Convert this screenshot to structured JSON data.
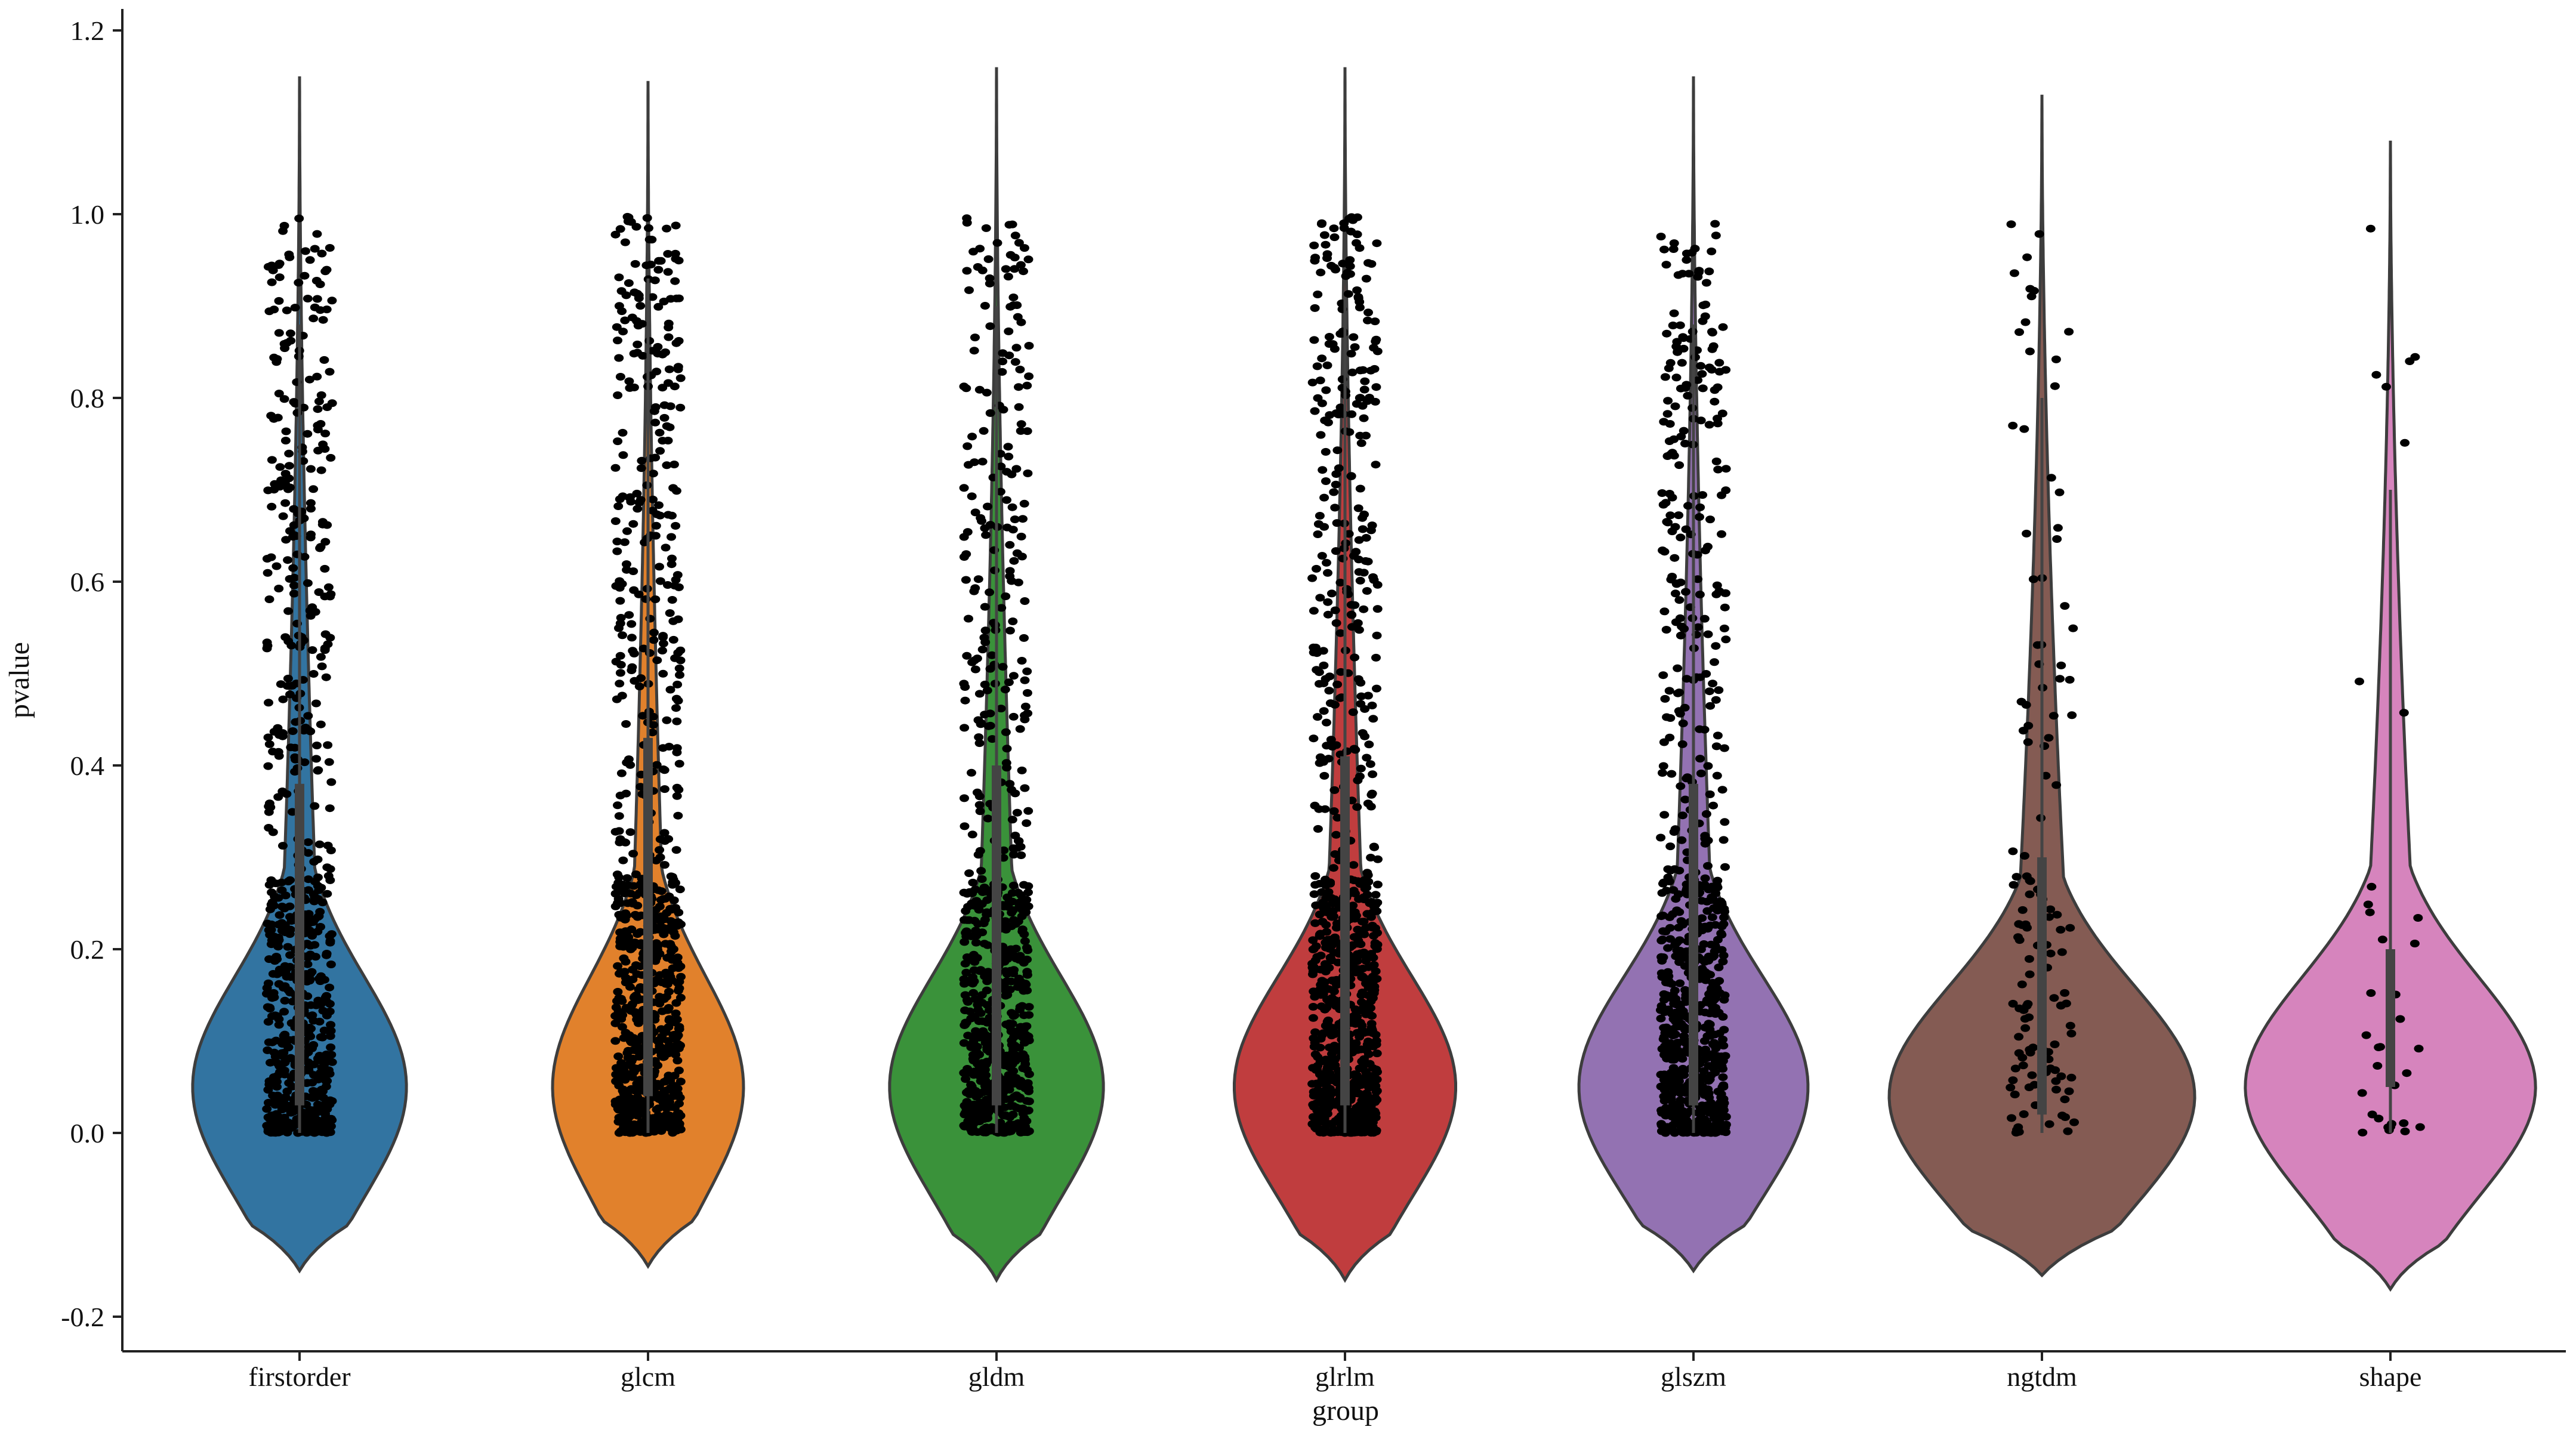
{
  "chart_data": {
    "type": "violin",
    "xlabel": "group",
    "ylabel": "pvalue",
    "ylim": [
      -0.2,
      1.2
    ],
    "yticks": [
      "-0.2",
      "0.0",
      "0.2",
      "0.4",
      "0.6",
      "0.8",
      "1.0",
      "1.2"
    ],
    "categories": [
      "firstorder",
      "glcm",
      "gldm",
      "glrlm",
      "glszm",
      "ngtdm",
      "shape"
    ],
    "series": [
      {
        "category": "firstorder",
        "color": "#3274a1",
        "min": -0.15,
        "max": 1.15,
        "mode": 0.05,
        "max_half_width": 0.28,
        "n_points": 700,
        "q1": 0.03,
        "median": 0.12,
        "q3": 0.38
      },
      {
        "category": "glcm",
        "color": "#e1812c",
        "min": -0.145,
        "max": 1.145,
        "mode": 0.05,
        "max_half_width": 0.25,
        "n_points": 850,
        "q1": 0.04,
        "median": 0.15,
        "q3": 0.43
      },
      {
        "category": "gldm",
        "color": "#3a923a",
        "min": -0.16,
        "max": 1.16,
        "mode": 0.05,
        "max_half_width": 0.28,
        "n_points": 700,
        "q1": 0.03,
        "median": 0.13,
        "q3": 0.4
      },
      {
        "category": "glrlm",
        "color": "#c03d3e",
        "min": -0.16,
        "max": 1.16,
        "mode": 0.05,
        "max_half_width": 0.29,
        "n_points": 900,
        "q1": 0.03,
        "median": 0.13,
        "q3": 0.41
      },
      {
        "category": "glszm",
        "color": "#9372b2",
        "min": -0.15,
        "max": 1.15,
        "mode": 0.05,
        "max_half_width": 0.3,
        "n_points": 750,
        "q1": 0.03,
        "median": 0.12,
        "q3": 0.38
      },
      {
        "category": "ngtdm",
        "color": "#845b53",
        "min": -0.155,
        "max": 1.13,
        "mode": 0.04,
        "max_half_width": 0.4,
        "n_points": 130,
        "q1": 0.02,
        "median": 0.08,
        "q3": 0.3
      },
      {
        "category": "shape",
        "color": "#d684bd",
        "min": -0.17,
        "max": 1.08,
        "mode": 0.05,
        "max_half_width": 0.38,
        "n_points": 35,
        "q1": 0.05,
        "median": 0.1,
        "q3": 0.2
      }
    ],
    "points_color": "#000000",
    "grid": false,
    "legend": "none"
  }
}
